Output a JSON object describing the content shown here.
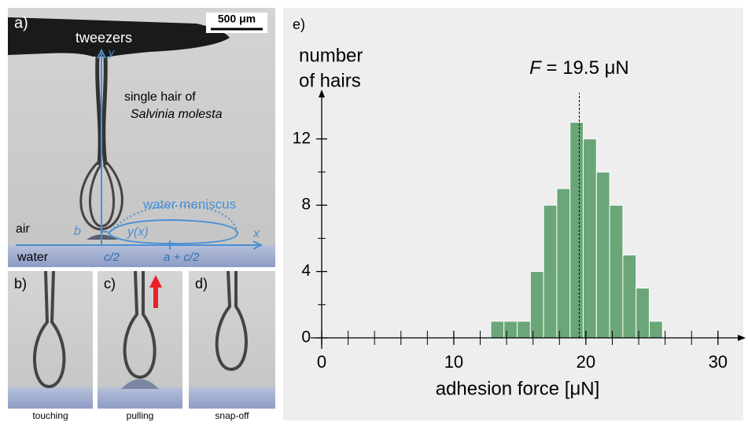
{
  "panels": {
    "a": {
      "label": "a)",
      "scale_bar": "500 μm",
      "tweezers": "tweezers",
      "hair_line1": "single hair of",
      "hair_line2": "Salvinia molesta",
      "meniscus": "water meniscus",
      "air": "air",
      "water": "water",
      "axis_y": "y",
      "axis_x": "x",
      "b": "b",
      "yx": "y(x)",
      "c2": "c/2",
      "ac2": "a + c/2"
    },
    "b": {
      "label": "b)",
      "caption": "touching"
    },
    "c": {
      "label": "c)",
      "caption": "pulling"
    },
    "d": {
      "label": "d)",
      "caption": "snap-off"
    }
  },
  "chart_data": {
    "type": "histogram",
    "panel_label": "e)",
    "ylabel": [
      "number",
      "of hairs"
    ],
    "xlabel": "adhesion force [μN]",
    "bins": [
      12.8,
      13.8,
      14.8,
      15.8,
      16.8,
      17.8,
      18.8,
      19.8,
      20.8,
      21.8,
      22.8,
      23.8,
      24.8,
      25.8
    ],
    "values": [
      1,
      1,
      1,
      4,
      8,
      9,
      13,
      12,
      10,
      8,
      5,
      3,
      1
    ],
    "color": "#6aa678",
    "xlim": [
      0,
      31.5
    ],
    "ylim": [
      0,
      14.5
    ],
    "xticks": [
      0,
      10,
      20,
      30
    ],
    "x_minor_ticks": [
      2,
      4,
      6,
      8,
      12,
      14,
      16,
      18,
      22,
      24,
      26,
      28
    ],
    "yticks": [
      0,
      4,
      8,
      12
    ],
    "y_minor_ticks": [
      2,
      6,
      10
    ],
    "mean": 19.5,
    "mean_label": {
      "var": "F",
      "text": "= 19.5 μN"
    }
  }
}
